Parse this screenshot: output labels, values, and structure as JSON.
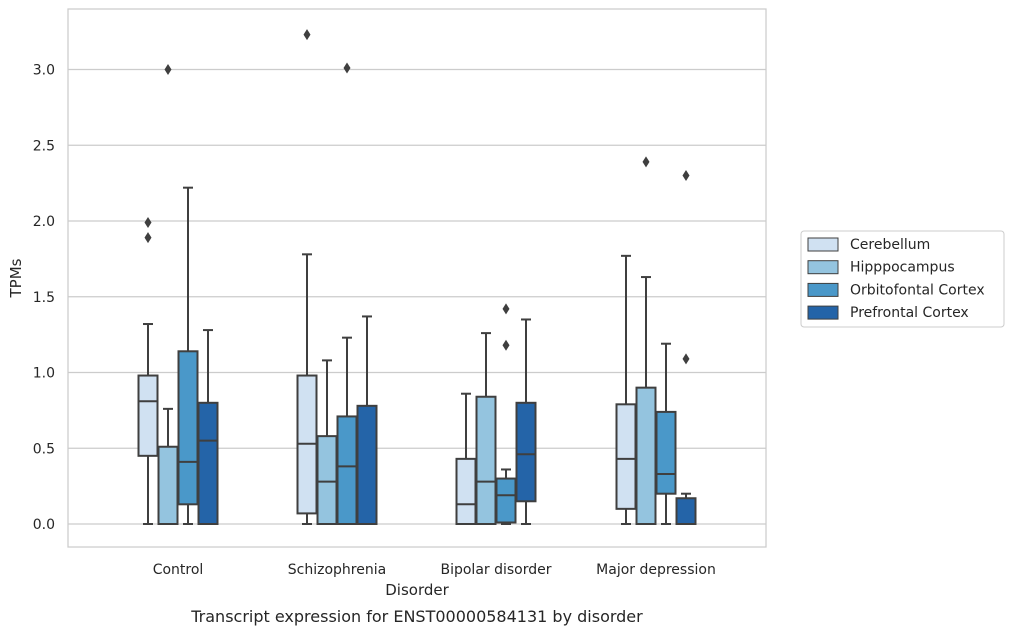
{
  "chart_data": {
    "type": "box",
    "title": "Transcript expression for ENST00000584131 by disorder",
    "xlabel": "Disorder",
    "ylabel": "TPMs",
    "ylim": [
      -0.15,
      3.4
    ],
    "yticks": [
      0.0,
      0.5,
      1.0,
      1.5,
      2.0,
      2.5,
      3.0
    ],
    "ytick_labels": [
      "0.0",
      "0.5",
      "1.0",
      "1.5",
      "2.0",
      "2.5",
      "3.0"
    ],
    "grid": "horizontal",
    "legend_position": "right",
    "categories": [
      "Control",
      "Schizophrenia",
      "Bipolar disorder",
      "Major depression"
    ],
    "series": [
      {
        "name": "Cerebellum",
        "color": "#d0e1f2",
        "boxes": [
          {
            "min": 0.0,
            "q1": 0.45,
            "median": 0.81,
            "q3": 0.98,
            "max": 1.32,
            "outliers": [
              1.89,
              1.99
            ]
          },
          {
            "min": 0.0,
            "q1": 0.07,
            "median": 0.53,
            "q3": 0.98,
            "max": 1.78,
            "outliers": [
              3.23
            ]
          },
          {
            "min": 0.0,
            "q1": 0.0,
            "median": 0.13,
            "q3": 0.43,
            "max": 0.86,
            "outliers": []
          },
          {
            "min": 0.0,
            "q1": 0.1,
            "median": 0.43,
            "q3": 0.79,
            "max": 1.77,
            "outliers": []
          }
        ]
      },
      {
        "name": "Hipppocampus",
        "color": "#94c4df",
        "boxes": [
          {
            "min": 0.0,
            "q1": 0.0,
            "median": 0.0,
            "q3": 0.51,
            "max": 0.76,
            "outliers": [
              3.0
            ]
          },
          {
            "min": 0.0,
            "q1": 0.0,
            "median": 0.28,
            "q3": 0.58,
            "max": 1.08,
            "outliers": []
          },
          {
            "min": 0.0,
            "q1": 0.0,
            "median": 0.28,
            "q3": 0.84,
            "max": 1.26,
            "outliers": []
          },
          {
            "min": 0.0,
            "q1": 0.0,
            "median": 0.0,
            "q3": 0.9,
            "max": 1.63,
            "outliers": [
              2.39
            ]
          }
        ]
      },
      {
        "name": "Orbitofontal Cortex",
        "color": "#4a98c9",
        "boxes": [
          {
            "min": 0.0,
            "q1": 0.13,
            "median": 0.41,
            "q3": 1.14,
            "max": 2.22,
            "outliers": []
          },
          {
            "min": 0.0,
            "q1": 0.0,
            "median": 0.38,
            "q3": 0.71,
            "max": 1.23,
            "outliers": [
              3.01
            ]
          },
          {
            "min": 0.0,
            "q1": 0.01,
            "median": 0.19,
            "q3": 0.3,
            "max": 0.36,
            "outliers": [
              1.18,
              1.42
            ]
          },
          {
            "min": 0.0,
            "q1": 0.2,
            "median": 0.33,
            "q3": 0.74,
            "max": 1.19,
            "outliers": []
          }
        ]
      },
      {
        "name": "Prefrontal Cortex",
        "color": "#2464a8",
        "boxes": [
          {
            "min": 0.0,
            "q1": 0.0,
            "median": 0.55,
            "q3": 0.8,
            "max": 1.28,
            "outliers": []
          },
          {
            "min": 0.0,
            "q1": 0.0,
            "median": 0.0,
            "q3": 0.78,
            "max": 1.37,
            "outliers": []
          },
          {
            "min": 0.0,
            "q1": 0.15,
            "median": 0.46,
            "q3": 0.8,
            "max": 1.35,
            "outliers": []
          },
          {
            "min": 0.0,
            "q1": 0.0,
            "median": 0.0,
            "q3": 0.17,
            "max": 0.2,
            "outliers": [
              1.09,
              2.3
            ]
          }
        ]
      }
    ]
  }
}
